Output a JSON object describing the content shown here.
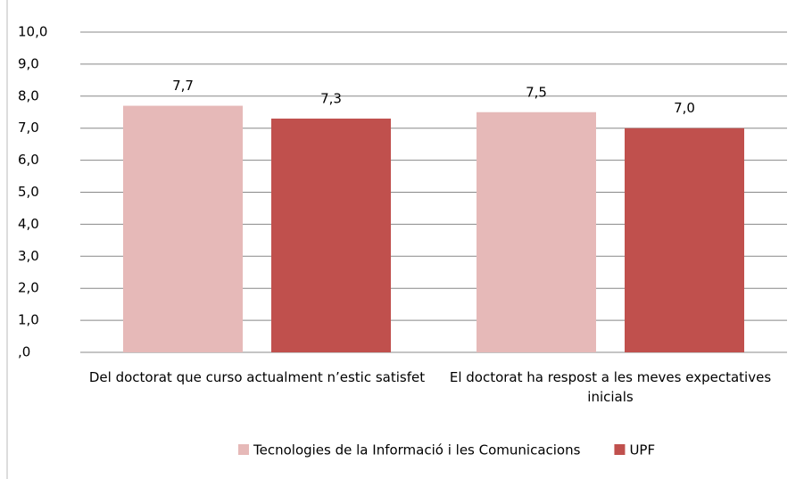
{
  "chart_data": {
    "type": "bar",
    "categories": [
      "Del doctorat que curso actualment n’estic satisfet",
      "El doctorat ha respost a les meves expectatives inicials"
    ],
    "series": [
      {
        "name": "Tecnologies de la Informació i les Comunicacions",
        "color": "#e6b9b8",
        "values": [
          7.7,
          7.5
        ],
        "value_labels": [
          "7,7",
          "7,5"
        ]
      },
      {
        "name": "UPF",
        "color": "#c0504d",
        "values": [
          7.3,
          7.0
        ],
        "value_labels": [
          "7,3",
          "7,0"
        ]
      }
    ],
    "ylim": [
      0,
      10
    ],
    "yticks": [
      {
        "value": 0,
        "label": ",0"
      },
      {
        "value": 1,
        "label": "1,0"
      },
      {
        "value": 2,
        "label": "2,0"
      },
      {
        "value": 3,
        "label": "3,0"
      },
      {
        "value": 4,
        "label": "4,0"
      },
      {
        "value": 5,
        "label": "5,0"
      },
      {
        "value": 6,
        "label": "6,0"
      },
      {
        "value": 7,
        "label": "7,0"
      },
      {
        "value": 8,
        "label": "8,0"
      },
      {
        "value": 9,
        "label": "9,0"
      },
      {
        "value": 10,
        "label": "10,0"
      }
    ],
    "grid": true,
    "legend": "bottom"
  }
}
